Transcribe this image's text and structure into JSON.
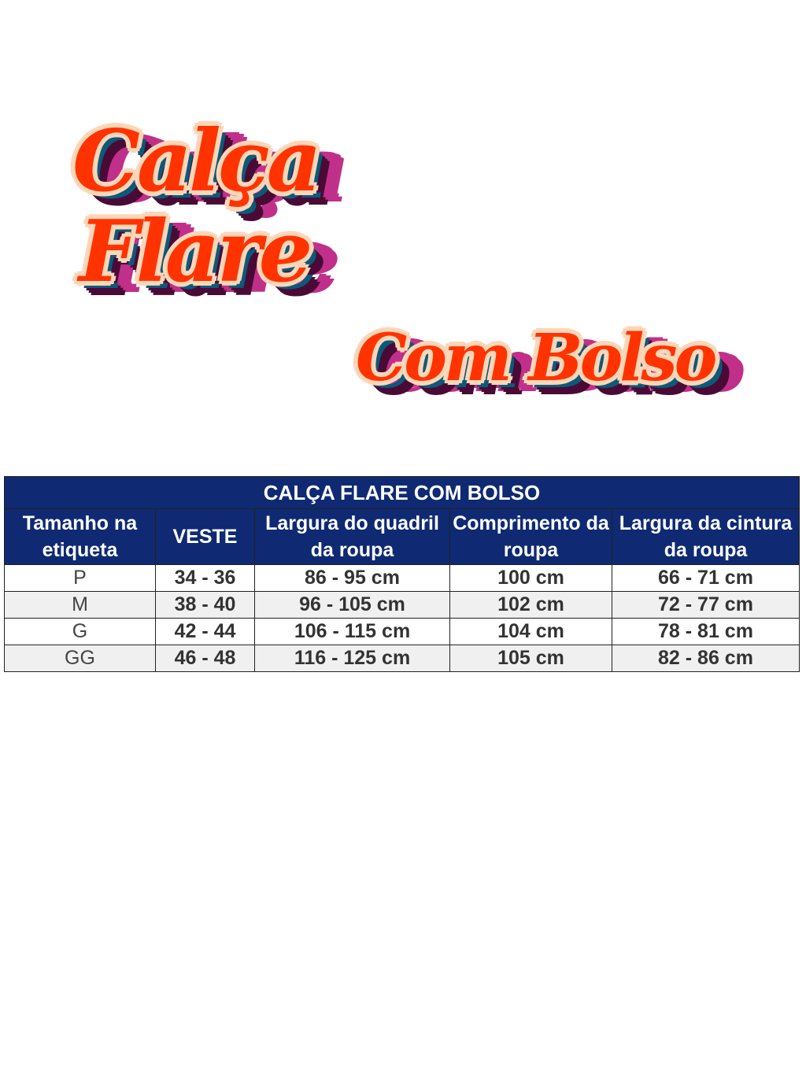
{
  "heading": {
    "line1": "Calça",
    "line2": "Flare",
    "line3": "Com Bolso"
  },
  "colors": {
    "text": "#ff3300",
    "outline": "#fdd6b8",
    "shadow": "#4a0a36",
    "accent_shadow": "#c0308a",
    "table_header": "#0f2a72"
  },
  "table": {
    "title": "CALÇA FLARE COM BOLSO",
    "columns": [
      "Tamanho na etiqueta",
      "VESTE",
      "Largura do quadril da roupa",
      "Comprimento da roupa",
      "Largura da cintura da roupa"
    ],
    "rows": [
      [
        "P",
        "34 - 36",
        "86 - 95 cm",
        "100 cm",
        "66 - 71 cm"
      ],
      [
        "M",
        "38 - 40",
        "96 - 105 cm",
        "102 cm",
        "72 - 77 cm"
      ],
      [
        "G",
        "42 - 44",
        "106 - 115 cm",
        "104 cm",
        "78 - 81 cm"
      ],
      [
        "GG",
        "46 - 48",
        "116 - 125 cm",
        "105 cm",
        "82 - 86 cm"
      ]
    ]
  }
}
